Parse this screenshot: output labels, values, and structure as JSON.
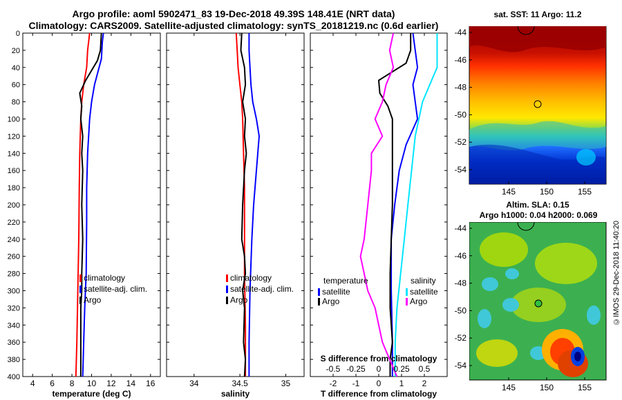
{
  "titles": {
    "line1": "Argo profile: aoml 5902471_83 19-Dec-2018 49.39S 148.41E (NRT data)",
    "line2": "Climatology: CARS2009. Satellite-adjusted climatology: synTS_20181219.nc (0.6d earlier)"
  },
  "colors": {
    "climatology": "#ff0000",
    "satellite": "#0000ff",
    "argo": "#000000",
    "sat_salinity": "#00e5ff",
    "argo_salinity": "#ff00ff"
  },
  "chart_data": [
    {
      "type": "line",
      "id": "temperature",
      "xlabel": "temperature (deg C)",
      "ylabel": "",
      "xlim": [
        3,
        17
      ],
      "ylim": [
        0,
        400
      ],
      "xticks": [
        4,
        6,
        8,
        10,
        12,
        14,
        16
      ],
      "yticks": [
        0,
        20,
        40,
        60,
        80,
        100,
        120,
        140,
        160,
        180,
        200,
        220,
        240,
        260,
        280,
        300,
        320,
        340,
        360,
        380,
        400
      ],
      "legend": [
        "climatology",
        "satellite-adj. clim.",
        "Argo"
      ],
      "series": [
        {
          "name": "climatology",
          "color": "#ff0000",
          "x": [
            9.8,
            9.6,
            9.5,
            9.2,
            9.0,
            8.9,
            8.8,
            8.75,
            8.7,
            8.6,
            8.5,
            8.4
          ],
          "y": [
            0,
            20,
            40,
            60,
            80,
            100,
            140,
            180,
            240,
            300,
            360,
            400
          ]
        },
        {
          "name": "satellite-adj. clim.",
          "color": "#0000ff",
          "x": [
            11.2,
            11.1,
            11.0,
            10.3,
            10.0,
            9.8,
            9.6,
            9.5,
            9.5,
            9.45,
            9.3,
            9.2,
            9.1
          ],
          "y": [
            0,
            10,
            30,
            60,
            80,
            100,
            140,
            180,
            220,
            280,
            320,
            360,
            400
          ]
        },
        {
          "name": "Argo",
          "color": "#000000",
          "x": [
            11.0,
            10.9,
            10.6,
            9.4,
            8.8,
            9.0,
            8.9,
            9.1,
            9.0,
            9.1,
            9.0,
            9.1,
            9.0,
            9.0,
            8.9,
            8.9,
            8.9,
            8.9
          ],
          "y": [
            0,
            20,
            32,
            55,
            70,
            85,
            100,
            120,
            140,
            160,
            200,
            240,
            280,
            300,
            320,
            360,
            380,
            400
          ]
        }
      ]
    },
    {
      "type": "line",
      "id": "salinity",
      "xlabel": "salinity",
      "ylabel": "",
      "xlim": [
        33.7,
        35.2
      ],
      "ylim": [
        0,
        400
      ],
      "xticks": [
        34,
        34.5,
        35
      ],
      "legend": [
        "climatology",
        "satellite-adj. clim.",
        "Argo"
      ],
      "series": [
        {
          "name": "climatology",
          "color": "#ff0000",
          "x": [
            34.46,
            34.47,
            34.48,
            34.5,
            34.52,
            34.53,
            34.54,
            34.55,
            34.55,
            34.55,
            34.56,
            34.56
          ],
          "y": [
            0,
            20,
            40,
            60,
            80,
            100,
            140,
            180,
            220,
            280,
            340,
            400
          ]
        },
        {
          "name": "satellite-adj. clim.",
          "color": "#0000ff",
          "x": [
            34.6,
            34.6,
            34.61,
            34.62,
            34.64,
            34.68,
            34.71,
            34.68,
            34.65,
            34.63,
            34.61,
            34.6,
            34.6
          ],
          "y": [
            0,
            20,
            40,
            60,
            80,
            100,
            120,
            160,
            200,
            240,
            300,
            360,
            400
          ]
        },
        {
          "name": "Argo",
          "color": "#000000",
          "x": [
            34.52,
            34.51,
            34.55,
            34.56,
            34.53,
            34.56,
            34.55,
            34.57,
            34.55,
            34.53,
            34.52,
            34.55,
            34.56,
            34.53,
            34.55,
            34.54,
            34.56,
            34.55
          ],
          "y": [
            0,
            20,
            40,
            60,
            80,
            100,
            120,
            140,
            160,
            200,
            240,
            260,
            280,
            300,
            320,
            360,
            380,
            400
          ]
        }
      ]
    },
    {
      "type": "line",
      "id": "difference",
      "xlabel": "T difference from climatology",
      "ylabel": "",
      "xlim": [
        -3,
        3
      ],
      "ylim": [
        0,
        400
      ],
      "xticks": [
        -2,
        -1,
        0,
        1,
        2
      ],
      "xticks_secondary_label": "S difference from climatology",
      "xticks_secondary": [
        -0.5,
        -0.25,
        0,
        0.25,
        0.5
      ],
      "legend_left_title": "temperature",
      "legend_right_title": "salinity",
      "legend_left": [
        "satellite",
        "Argo"
      ],
      "legend_right": [
        "satellite",
        "Argo"
      ],
      "series": [
        {
          "name": "temperature satellite",
          "color": "#0000ff",
          "x": [
            1.5,
            1.6,
            1.7,
            1.5,
            1.6,
            1.7,
            1.2,
            0.9,
            0.7,
            0.55,
            0.55,
            0.6,
            0.6
          ],
          "y": [
            0,
            20,
            40,
            60,
            80,
            100,
            130,
            160,
            200,
            240,
            300,
            360,
            400
          ]
        },
        {
          "name": "temperature Argo",
          "color": "#000000",
          "x": [
            1.4,
            1.4,
            1.2,
            0,
            0.05,
            0.4,
            0.6,
            0.6,
            0.6,
            0.6,
            0.55,
            0.5,
            0.5,
            0.5,
            0.6,
            0.5,
            0.5
          ],
          "y": [
            0,
            20,
            35,
            55,
            70,
            85,
            100,
            130,
            160,
            200,
            240,
            280,
            300,
            320,
            360,
            380,
            400
          ]
        },
        {
          "name": "salinity satellite",
          "color": "#00e5ff",
          "x": [
            0.64,
            0.64,
            0.64,
            0.56,
            0.48,
            0.44,
            0.4,
            0.36,
            0.32,
            0.28,
            0.24,
            0.2,
            0.18,
            0.18
          ],
          "y": [
            0,
            20,
            40,
            60,
            80,
            100,
            120,
            160,
            200,
            240,
            280,
            320,
            360,
            400
          ]
        },
        {
          "name": "salinity Argo",
          "color": "#ff00ff",
          "x": [
            0.16,
            0.12,
            0.16,
            0.08,
            0.04,
            -0.04,
            0.04,
            -0.08,
            -0.08,
            -0.12,
            -0.16,
            -0.2,
            -0.16,
            -0.12,
            -0.04,
            0.04,
            0.12,
            0.2
          ],
          "y": [
            0,
            20,
            40,
            60,
            80,
            100,
            120,
            140,
            160,
            200,
            240,
            260,
            280,
            300,
            320,
            360,
            380,
            400
          ]
        }
      ]
    }
  ],
  "sst_map": {
    "title": "sat. SST: 11 Argo: 11.2",
    "yticks": [
      "-44",
      "-46",
      "-48",
      "-50",
      "-52",
      "-54"
    ],
    "xticks": [
      "145",
      "150",
      "155"
    ]
  },
  "sla_map": {
    "title_line1": "Altim. SLA: 0.15",
    "title_line2": "Argo h1000: 0.04 h2000: 0.069",
    "yticks": [
      "-44",
      "-46",
      "-48",
      "-50",
      "-52",
      "-54"
    ],
    "xticks": [
      "145",
      "150",
      "155"
    ]
  },
  "credit": "©IMOS 29-Dec-2018 11:40:20"
}
